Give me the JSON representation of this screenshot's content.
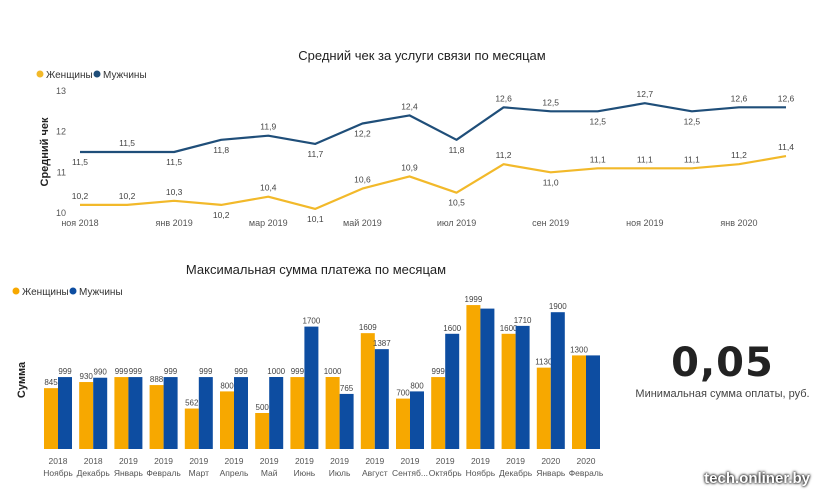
{
  "chart_data": [
    {
      "type": "line",
      "title": "Средний чек за услуги связи по месяцам",
      "ylabel": "Средний чек",
      "ylim": [
        10,
        13
      ],
      "yticks": [
        "10",
        "11",
        "12",
        "13"
      ],
      "x_tick_labels": [
        "ноя 2018",
        "янв 2019",
        "мар 2019",
        "май 2019",
        "июл 2019",
        "сен 2019",
        "ноя 2019",
        "янв 2020"
      ],
      "x": [
        "ноя 2018",
        "дек 2018",
        "янв 2019",
        "фев 2019",
        "мар 2019",
        "апр 2019",
        "май 2019",
        "июн 2019",
        "июл 2019",
        "авг 2019",
        "сен 2019",
        "окт 2019",
        "ноя 2019",
        "дек 2019",
        "янв 2020",
        "фев 2020"
      ],
      "legend_position": "top-left",
      "series": [
        {
          "name": "Женщины",
          "color": "#F2B92A",
          "values": [
            10.2,
            10.2,
            10.3,
            10.2,
            10.4,
            10.1,
            10.6,
            10.9,
            10.5,
            11.2,
            11.0,
            11.1,
            11.1,
            11.1,
            11.2,
            11.4
          ],
          "labels": [
            "10,2",
            "10,2",
            "10,3",
            "10,2",
            "10,4",
            "10,1",
            "10,6",
            "10,9",
            "10,5",
            "11,2",
            "11,0",
            "11,1",
            "11,1",
            "11,1",
            "11,2",
            "11,4"
          ]
        },
        {
          "name": "Мужчины",
          "color": "#1F4E79",
          "values": [
            11.5,
            11.5,
            11.5,
            11.8,
            11.9,
            11.7,
            12.2,
            12.4,
            11.8,
            12.6,
            12.5,
            12.5,
            12.7,
            12.5,
            12.6,
            12.6
          ],
          "labels": [
            "11,5",
            "11,5",
            "11,5",
            "11,8",
            "11,9",
            "11,7",
            "12,2",
            "12,4",
            "11,8",
            "12,6",
            "12,5",
            "12,5",
            "12,7",
            "12,5",
            "12,6",
            "12,6"
          ]
        }
      ]
    },
    {
      "type": "bar",
      "title": "Максимальная сумма платежа по месяцам",
      "ylabel": "Сумма",
      "legend_position": "top-left",
      "categories": [
        {
          "year": "2018",
          "month": "Ноябрь"
        },
        {
          "year": "2018",
          "month": "Декабрь"
        },
        {
          "year": "2019",
          "month": "Январь"
        },
        {
          "year": "2019",
          "month": "Февраль"
        },
        {
          "year": "2019",
          "month": "Март"
        },
        {
          "year": "2019",
          "month": "Апрель"
        },
        {
          "year": "2019",
          "month": "Май"
        },
        {
          "year": "2019",
          "month": "Июнь"
        },
        {
          "year": "2019",
          "month": "Июль"
        },
        {
          "year": "2019",
          "month": "Август"
        },
        {
          "year": "2019",
          "month": "Сентяб..."
        },
        {
          "year": "2019",
          "month": "Октябрь"
        },
        {
          "year": "2019",
          "month": "Ноябрь"
        },
        {
          "year": "2019",
          "month": "Декабрь"
        },
        {
          "year": "2020",
          "month": "Январь"
        },
        {
          "year": "2020",
          "month": "Февраль"
        }
      ],
      "series": [
        {
          "name": "Женщины",
          "color": "#F7A800",
          "values": [
            845,
            930,
            999,
            888,
            562,
            800,
            500,
            999,
            1000,
            1609,
            700,
            999,
            1999,
            1600,
            1130,
            1300
          ],
          "labels": [
            "845",
            "930",
            "999",
            "888",
            "562",
            "800",
            "500",
            "999",
            "1000",
            "1609",
            "700",
            "999",
            "1999",
            "1600",
            "1130",
            "1300"
          ]
        },
        {
          "name": "Мужчины",
          "color": "#0D4DA1",
          "values": [
            999,
            990,
            999,
            999,
            999,
            999,
            1000,
            1700,
            765,
            1387,
            800,
            1600,
            1950,
            1710,
            1900,
            1300
          ],
          "labels": [
            "999",
            "990",
            "999",
            "999",
            "999",
            "999",
            "1000",
            "1700",
            "765",
            "1387",
            "800",
            "1600",
            "",
            "1710",
            "1900",
            ""
          ]
        }
      ]
    }
  ],
  "kpi": {
    "value": "0,05",
    "label": "Минимальная сумма оплаты, руб."
  },
  "watermark": "tech.onliner.by"
}
